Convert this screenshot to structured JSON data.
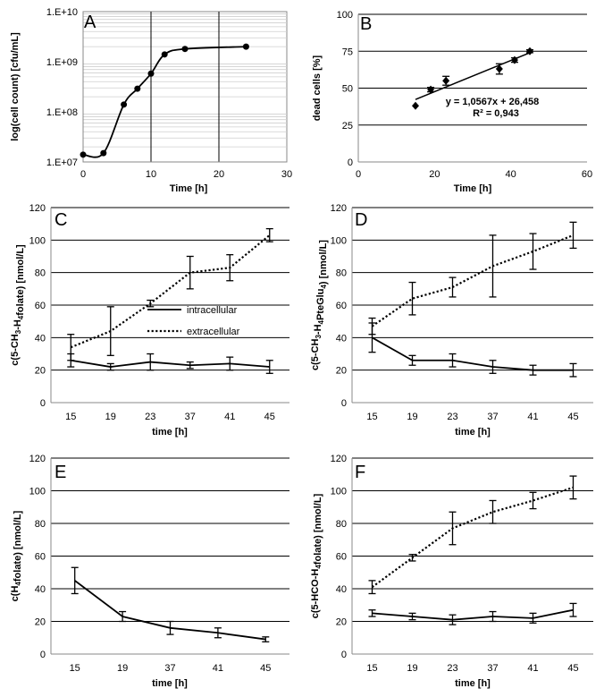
{
  "chart_data": [
    {
      "panel": "A",
      "type": "line",
      "xlabel": "Time [h]",
      "ylabel": "log(cell count) [cfu/mL]",
      "yscale": "log",
      "xlim": [
        0,
        30
      ],
      "ylim": [
        10000000,
        10000000000
      ],
      "xticks": [
        0,
        10,
        20,
        30
      ],
      "xtick_labels": [
        "0",
        "10",
        "20",
        "30"
      ],
      "yticks": [
        10000000,
        100000000,
        1000000000,
        10000000000
      ],
      "ytick_labels": [
        "1.E+07",
        "1.E+08",
        "1.E+09",
        "1.E+10"
      ],
      "grid": "x major lines and minor log y lines",
      "series": [
        {
          "name": "cell count",
          "x": [
            0,
            3,
            6,
            8,
            10,
            12,
            15,
            24
          ],
          "values": [
            14000000,
            15000000,
            140000000,
            290000000,
            580000000,
            1400000000,
            1800000000,
            2000000000
          ]
        }
      ]
    },
    {
      "panel": "B",
      "type": "scatter",
      "xlabel": "Time [h]",
      "ylabel": "dead cells [%]",
      "xlim": [
        0,
        60
      ],
      "ylim": [
        0,
        100
      ],
      "xticks": [
        0,
        20,
        40,
        60
      ],
      "xtick_labels": [
        "0",
        "20",
        "40",
        "60"
      ],
      "yticks": [
        0,
        25,
        50,
        75,
        100
      ],
      "ytick_labels": [
        "0",
        "25",
        "50",
        "75",
        "100"
      ],
      "series": [
        {
          "name": "dead cells",
          "x": [
            15,
            19,
            23,
            37,
            41,
            45
          ],
          "values": [
            38,
            49,
            55,
            63,
            69,
            75
          ],
          "errors": [
            0,
            1.5,
            3,
            3.5,
            1.5,
            1
          ]
        }
      ],
      "trendline": {
        "slope": 1.0567,
        "intercept": 26.458,
        "x": [
          15,
          45
        ]
      },
      "annotations": [
        "y = 1,0567x + 26,458",
        "R² = 0,943"
      ]
    },
    {
      "panel": "C",
      "type": "line",
      "xlabel": "time [h]",
      "ylabel": "c(5-CH₃-H₄folate)  [nmol/L]",
      "categories": [
        "15",
        "19",
        "23",
        "37",
        "41",
        "45"
      ],
      "ylim": [
        0,
        120
      ],
      "yticks": [
        0,
        20,
        40,
        60,
        80,
        100,
        120
      ],
      "ytick_labels": [
        "0",
        "20",
        "40",
        "60",
        "80",
        "100",
        "120"
      ],
      "legend": "center-left",
      "series": [
        {
          "name": "intracellular",
          "style": "solid",
          "values": [
            26,
            22,
            25,
            23,
            24,
            22
          ],
          "errors": [
            4,
            2,
            5,
            2,
            4,
            4
          ]
        },
        {
          "name": "extracellular",
          "style": "dotted",
          "values": [
            34,
            44,
            61,
            80,
            83,
            103
          ],
          "errors": [
            8,
            15,
            2,
            10,
            8,
            4
          ]
        }
      ]
    },
    {
      "panel": "D",
      "type": "line",
      "xlabel": "time [h]",
      "ylabel": "c(5-CH₃-H₄PteGlu₄)  [nmol/L]",
      "categories": [
        "15",
        "19",
        "23",
        "37",
        "41",
        "45"
      ],
      "ylim": [
        0,
        120
      ],
      "yticks": [
        0,
        20,
        40,
        60,
        80,
        100,
        120
      ],
      "ytick_labels": [
        "0",
        "20",
        "40",
        "60",
        "80",
        "100",
        "120"
      ],
      "series": [
        {
          "name": "intracellular",
          "style": "solid",
          "values": [
            40,
            26,
            26,
            22,
            20,
            20
          ],
          "errors": [
            9,
            3,
            4,
            4,
            3,
            4
          ]
        },
        {
          "name": "extracellular",
          "style": "dotted",
          "values": [
            47,
            64,
            71,
            84,
            93,
            103
          ],
          "errors": [
            5,
            10,
            6,
            19,
            11,
            8
          ]
        }
      ]
    },
    {
      "panel": "E",
      "type": "line",
      "xlabel": "time [h]",
      "ylabel": "c(H₄folate)  [nmol/L]",
      "categories": [
        "15",
        "19",
        "37",
        "41",
        "45"
      ],
      "ylim": [
        0,
        120
      ],
      "yticks": [
        0,
        20,
        40,
        60,
        80,
        100,
        120
      ],
      "ytick_labels": [
        "0",
        "20",
        "40",
        "60",
        "80",
        "100",
        "120"
      ],
      "series": [
        {
          "name": "intracellular",
          "style": "solid",
          "values": [
            45,
            23,
            16,
            13,
            9
          ],
          "errors": [
            8,
            3,
            4,
            3,
            1.5
          ]
        }
      ]
    },
    {
      "panel": "F",
      "type": "line",
      "xlabel": "time [h]",
      "ylabel": "c(5-HCO-H₄folate)  [nmol/L]",
      "categories": [
        "15",
        "19",
        "23",
        "37",
        "41",
        "45"
      ],
      "ylim": [
        0,
        120
      ],
      "yticks": [
        0,
        20,
        40,
        60,
        80,
        100,
        120
      ],
      "ytick_labels": [
        "0",
        "20",
        "40",
        "60",
        "80",
        "100",
        "120"
      ],
      "series": [
        {
          "name": "intracellular",
          "style": "solid",
          "values": [
            25,
            23,
            21,
            23,
            22,
            27
          ],
          "errors": [
            2,
            2,
            3,
            3,
            3,
            4
          ]
        },
        {
          "name": "extracellular",
          "style": "dotted",
          "values": [
            41,
            59,
            77,
            87,
            94,
            102
          ],
          "errors": [
            4,
            2,
            10,
            7,
            5,
            7
          ]
        }
      ]
    }
  ]
}
